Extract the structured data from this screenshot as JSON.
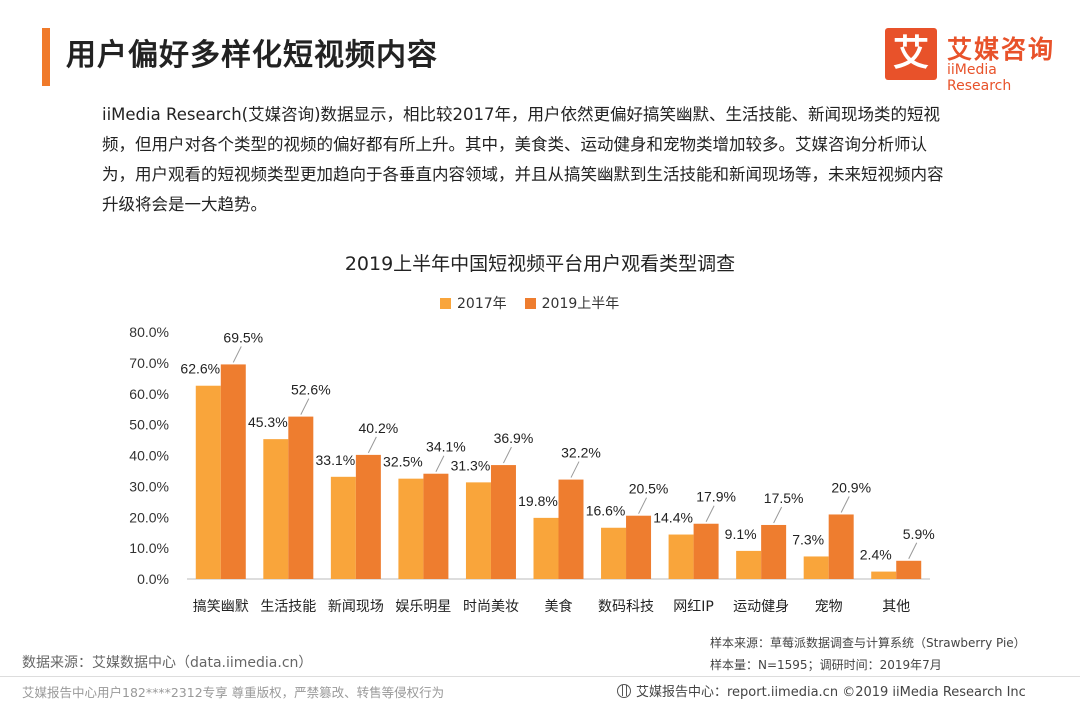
{
  "header": {
    "title": "用户偏好多样化短视频内容",
    "logo_glyph": "艾",
    "logo_cn": "艾媒咨询",
    "logo_en": "iiMedia Research"
  },
  "intro": "iiMedia Research(艾媒咨询)数据显示，相比较2017年，用户依然更偏好搞笑幽默、生活技能、新闻现场类的短视频，但用户对各个类型的视频的偏好都有所上升。其中，美食类、运动健身和宠物类增加较多。艾媒咨询分析师认为，用户观看的短视频类型更加趋向于各垂直内容领域，并且从搞笑幽默到生活技能和新闻现场等，未来短视频内容升级将会是一大趋势。",
  "chart_data": {
    "type": "bar",
    "title": "2019上半年中国短视频平台用户观看类型调查",
    "categories": [
      "搞笑幽默",
      "生活技能",
      "新闻现场",
      "娱乐明星",
      "时尚美妆",
      "美食",
      "数码科技",
      "网红IP",
      "运动健身",
      "宠物",
      "其他"
    ],
    "series": [
      {
        "name": "2017年",
        "color": "#f9a53b",
        "values": [
          62.6,
          45.3,
          33.1,
          32.5,
          31.3,
          19.8,
          16.6,
          14.4,
          9.1,
          7.3,
          2.4
        ],
        "labels": [
          "62.6%",
          "45.3%",
          "33.1%",
          "32.5%",
          "31.3%",
          "19.8%",
          "16.6%",
          "14.4%",
          "9.1%",
          "7.3%",
          "2.4%"
        ]
      },
      {
        "name": "2019上半年",
        "color": "#ee7d2f",
        "values": [
          69.5,
          52.6,
          40.2,
          34.1,
          36.9,
          32.2,
          20.5,
          17.9,
          17.5,
          20.9,
          5.9
        ],
        "labels": [
          "69.5%",
          "52.6%",
          "40.2%",
          "34.1%",
          "36.9%",
          "32.2%",
          "20.5%",
          "17.9%",
          "17.5%",
          "20.9%",
          "5.9%"
        ]
      }
    ],
    "ylim": [
      0,
      80
    ],
    "yticks": [
      "0.0%",
      "10.0%",
      "20.0%",
      "30.0%",
      "40.0%",
      "50.0%",
      "60.0%",
      "70.0%",
      "80.0%"
    ],
    "ytick_values": [
      0,
      10,
      20,
      30,
      40,
      50,
      60,
      70,
      80
    ],
    "grid": false,
    "legend": "top-center",
    "xlabel": "",
    "ylabel": ""
  },
  "source": {
    "left": "数据来源：艾媒数据中心（data.iimedia.cn）",
    "sample_source": "样本来源：草莓派数据调查与计算系统（Strawberry  Pie）",
    "sample_size": "样本量：N=1595；调研时间：2019年7月"
  },
  "footer": {
    "left": "艾媒报告中心用户182****2312专享 尊重版权，严禁篡改、转售等侵权行为",
    "right": "艾媒报告中心：report.iimedia.cn  ©2019  iiMedia Research  Inc"
  }
}
